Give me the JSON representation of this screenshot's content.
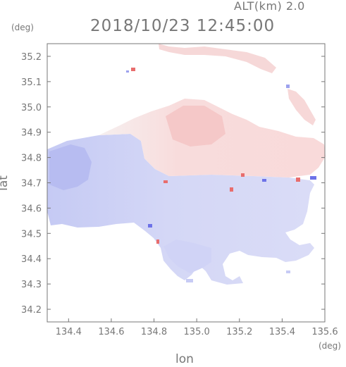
{
  "header": {
    "altitude_label": "ALT(km) 2.0",
    "timestamp": "2018/10/23 12:45:00"
  },
  "axes": {
    "y_unit": "(deg)",
    "x_unit": "(deg)",
    "xlabel": "lon",
    "ylabel": "lat",
    "xlim": [
      134.3,
      135.6
    ],
    "ylim": [
      34.15,
      35.25
    ],
    "x_ticks": [
      {
        "value": 134.4,
        "label": "134.4"
      },
      {
        "value": 134.6,
        "label": "134.6"
      },
      {
        "value": 134.8,
        "label": "134.8"
      },
      {
        "value": 135.0,
        "label": "135.0"
      },
      {
        "value": 135.2,
        "label": "135.2"
      },
      {
        "value": 135.4,
        "label": "135.4"
      },
      {
        "value": 135.6,
        "label": "135.6"
      }
    ],
    "y_ticks": [
      {
        "value": 34.2,
        "label": "34.2"
      },
      {
        "value": 34.3,
        "label": "34.3"
      },
      {
        "value": 34.4,
        "label": "34.4"
      },
      {
        "value": 34.5,
        "label": "34.5"
      },
      {
        "value": 34.6,
        "label": "34.6"
      },
      {
        "value": 34.7,
        "label": "34.7"
      },
      {
        "value": 34.8,
        "label": "34.8"
      },
      {
        "value": 34.9,
        "label": "34.9"
      },
      {
        "value": 35.0,
        "label": "35.0"
      },
      {
        "value": 35.1,
        "label": "35.1"
      },
      {
        "value": 35.2,
        "label": "35.2"
      }
    ]
  },
  "colors": {
    "frame": "#777777",
    "approaching": "#c7cbf5",
    "approaching_light": "#e2e4f8",
    "receding": "#f7d2d2",
    "receding_light": "#fbe6e6",
    "strong_blue": "#6d72e8",
    "strong_red": "#e86d6d"
  }
}
